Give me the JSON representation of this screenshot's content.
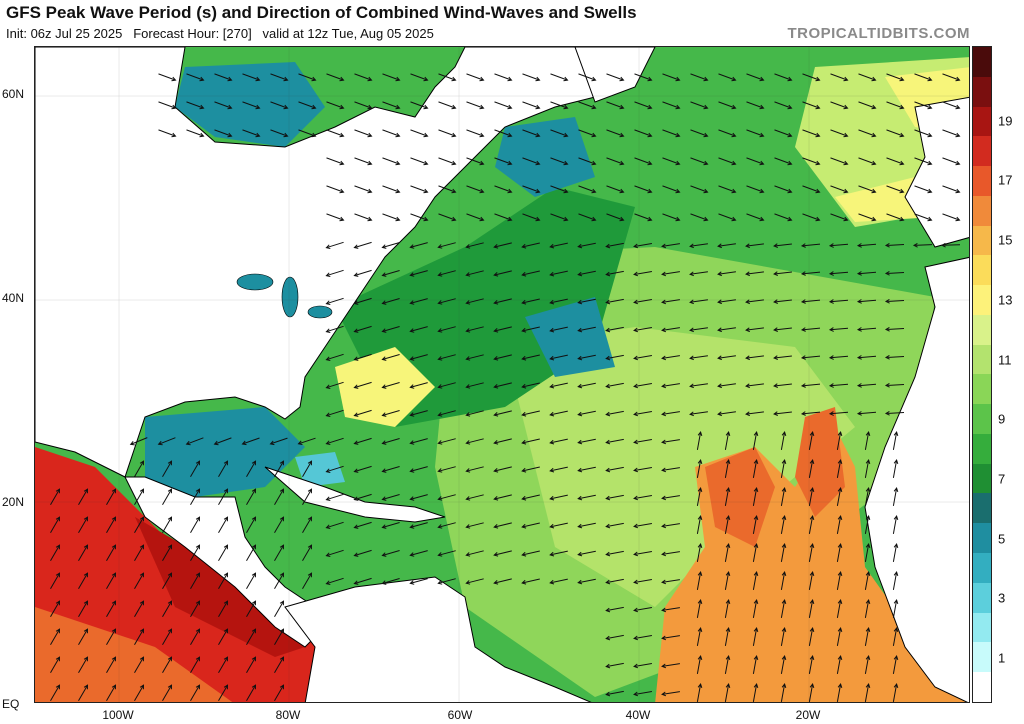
{
  "header": {
    "title": "GFS Peak Wave Period (s) and Direction of Combined Wind-Waves and Swells",
    "init": "Init: 06z Jul 25 2025",
    "forecast_hour": "Forecast Hour: [270]",
    "valid": "valid at 12z Tue, Aug 05 2025",
    "brand": "TROPICALTIDBITS.COM"
  },
  "axes": {
    "lat_labels": [
      "60N",
      "40N",
      "20N",
      "EQ"
    ],
    "lon_labels": [
      "100W",
      "80W",
      "60W",
      "40W",
      "20W"
    ]
  },
  "colorbar": {
    "labels": [
      "19",
      "17",
      "15",
      "13",
      "11",
      "9",
      "7",
      "5",
      "3",
      "1"
    ],
    "colors": [
      "#4a0b0b",
      "#7a0f0f",
      "#a81512",
      "#d22b1f",
      "#e8582a",
      "#f08a3a",
      "#f6b84a",
      "#fbdc5a",
      "#fdf27a",
      "#d9f28a",
      "#b3e36e",
      "#8ad657",
      "#5cc44a",
      "#35ad3c",
      "#1f8f33",
      "#1a6e6e",
      "#1f8ea0",
      "#33aec0",
      "#5ccfdc",
      "#93eaf0",
      "#c8fbfb",
      "#ffffff"
    ]
  },
  "map": {
    "ocean_colors": {
      "green_dark": "#1f9a3a",
      "green": "#45b84a",
      "green_light": "#8fd65a",
      "yellow_green": "#c6ec72",
      "yellow": "#f7f57a",
      "teal": "#1d8fa0",
      "cyan": "#55c7d6",
      "orange": "#f39a3d",
      "orange_red": "#ea6a2c",
      "red": "#d9261c",
      "dark_red": "#b5140f"
    }
  }
}
